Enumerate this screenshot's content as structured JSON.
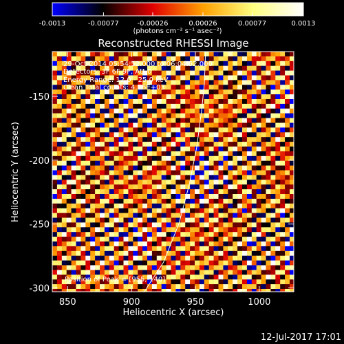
{
  "chart_data": {
    "type": "heatmap",
    "title": "Reconstructed RHESSI Image",
    "xlabel": "Heliocentric X (arcsec)",
    "ylabel": "Heliocentric Y (arcsec)",
    "xlim": [
      838,
      1027
    ],
    "ylim": [
      -303,
      -115
    ],
    "x_ticks": [
      850,
      900,
      950,
      1000
    ],
    "y_ticks": [
      -150,
      -200,
      -250,
      -300
    ],
    "colorbar": {
      "range": [
        -0.0013,
        0.0013
      ],
      "ticks": [
        -0.0013,
        -0.00077,
        -0.00026,
        0.00026,
        0.00077,
        0.0013
      ],
      "tick_labels": [
        "-0.0013",
        "-0.00077",
        "-0.00026",
        "0.00026",
        "0.00077",
        "0.0013"
      ],
      "units_label": "(photons cm⁻² s⁻¹ asec⁻²)",
      "colormap": [
        "#0000ff",
        "#000000",
        "#e00000",
        "#ffa000",
        "#ffff80",
        "#ffffff"
      ]
    },
    "annotations": [
      "29-Oct-2014 05:54:52.000 to 06:04:52.000",
      "Detectors: 3F 6F 9F, Att 0",
      "Energy Range: 12.0 - 25.0 keV",
      "Clean    Total counts: 4.76E+03",
      "Position of Peak = [955,-140]"
    ],
    "limb_curve": [
      [
        910,
        -303
      ],
      [
        925,
        -280
      ],
      [
        937,
        -250
      ],
      [
        945,
        -220
      ],
      [
        951,
        -190
      ],
      [
        955,
        -160
      ],
      [
        957,
        -140
      ],
      [
        958,
        -115
      ]
    ],
    "pattern": {
      "description_values": "diagonal stripe pattern of alternating positive and negative flux",
      "stripe_period_arcsec": 9.5,
      "stripe_slope": 0.5,
      "peak_value": 0.0013,
      "min_value": -0.0013
    }
  },
  "footer": {
    "timestamp": "12-Jul-2017 17:01"
  }
}
